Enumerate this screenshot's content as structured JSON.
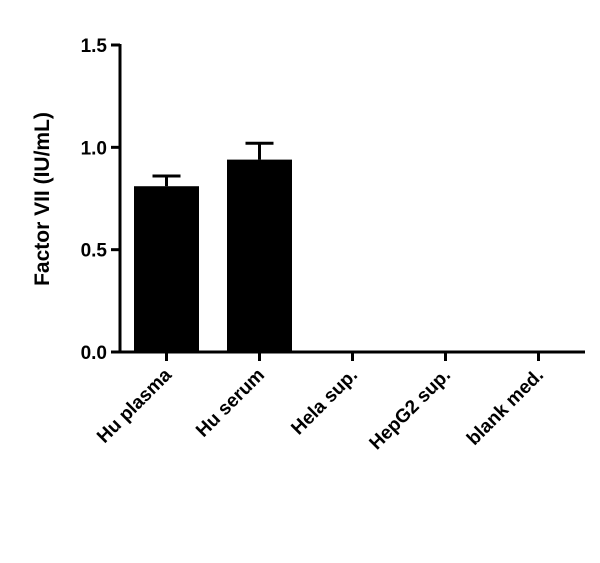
{
  "chart_data": {
    "type": "bar",
    "title": "",
    "xlabel": "",
    "ylabel": "Factor VII (IU/mL)",
    "ylim": [
      0,
      1.5
    ],
    "yticks": [
      "0.0",
      "0.5",
      "1.0",
      "1.5"
    ],
    "categories": [
      "Hu plasma",
      "Hu serum",
      "Hela sup.",
      "HepG2 sup.",
      "blank med."
    ],
    "values": [
      0.81,
      0.94,
      0,
      0,
      0
    ],
    "errors": [
      0.05,
      0.08,
      0,
      0,
      0
    ],
    "bar_color": "#000000",
    "grid": false,
    "legend": "none"
  }
}
